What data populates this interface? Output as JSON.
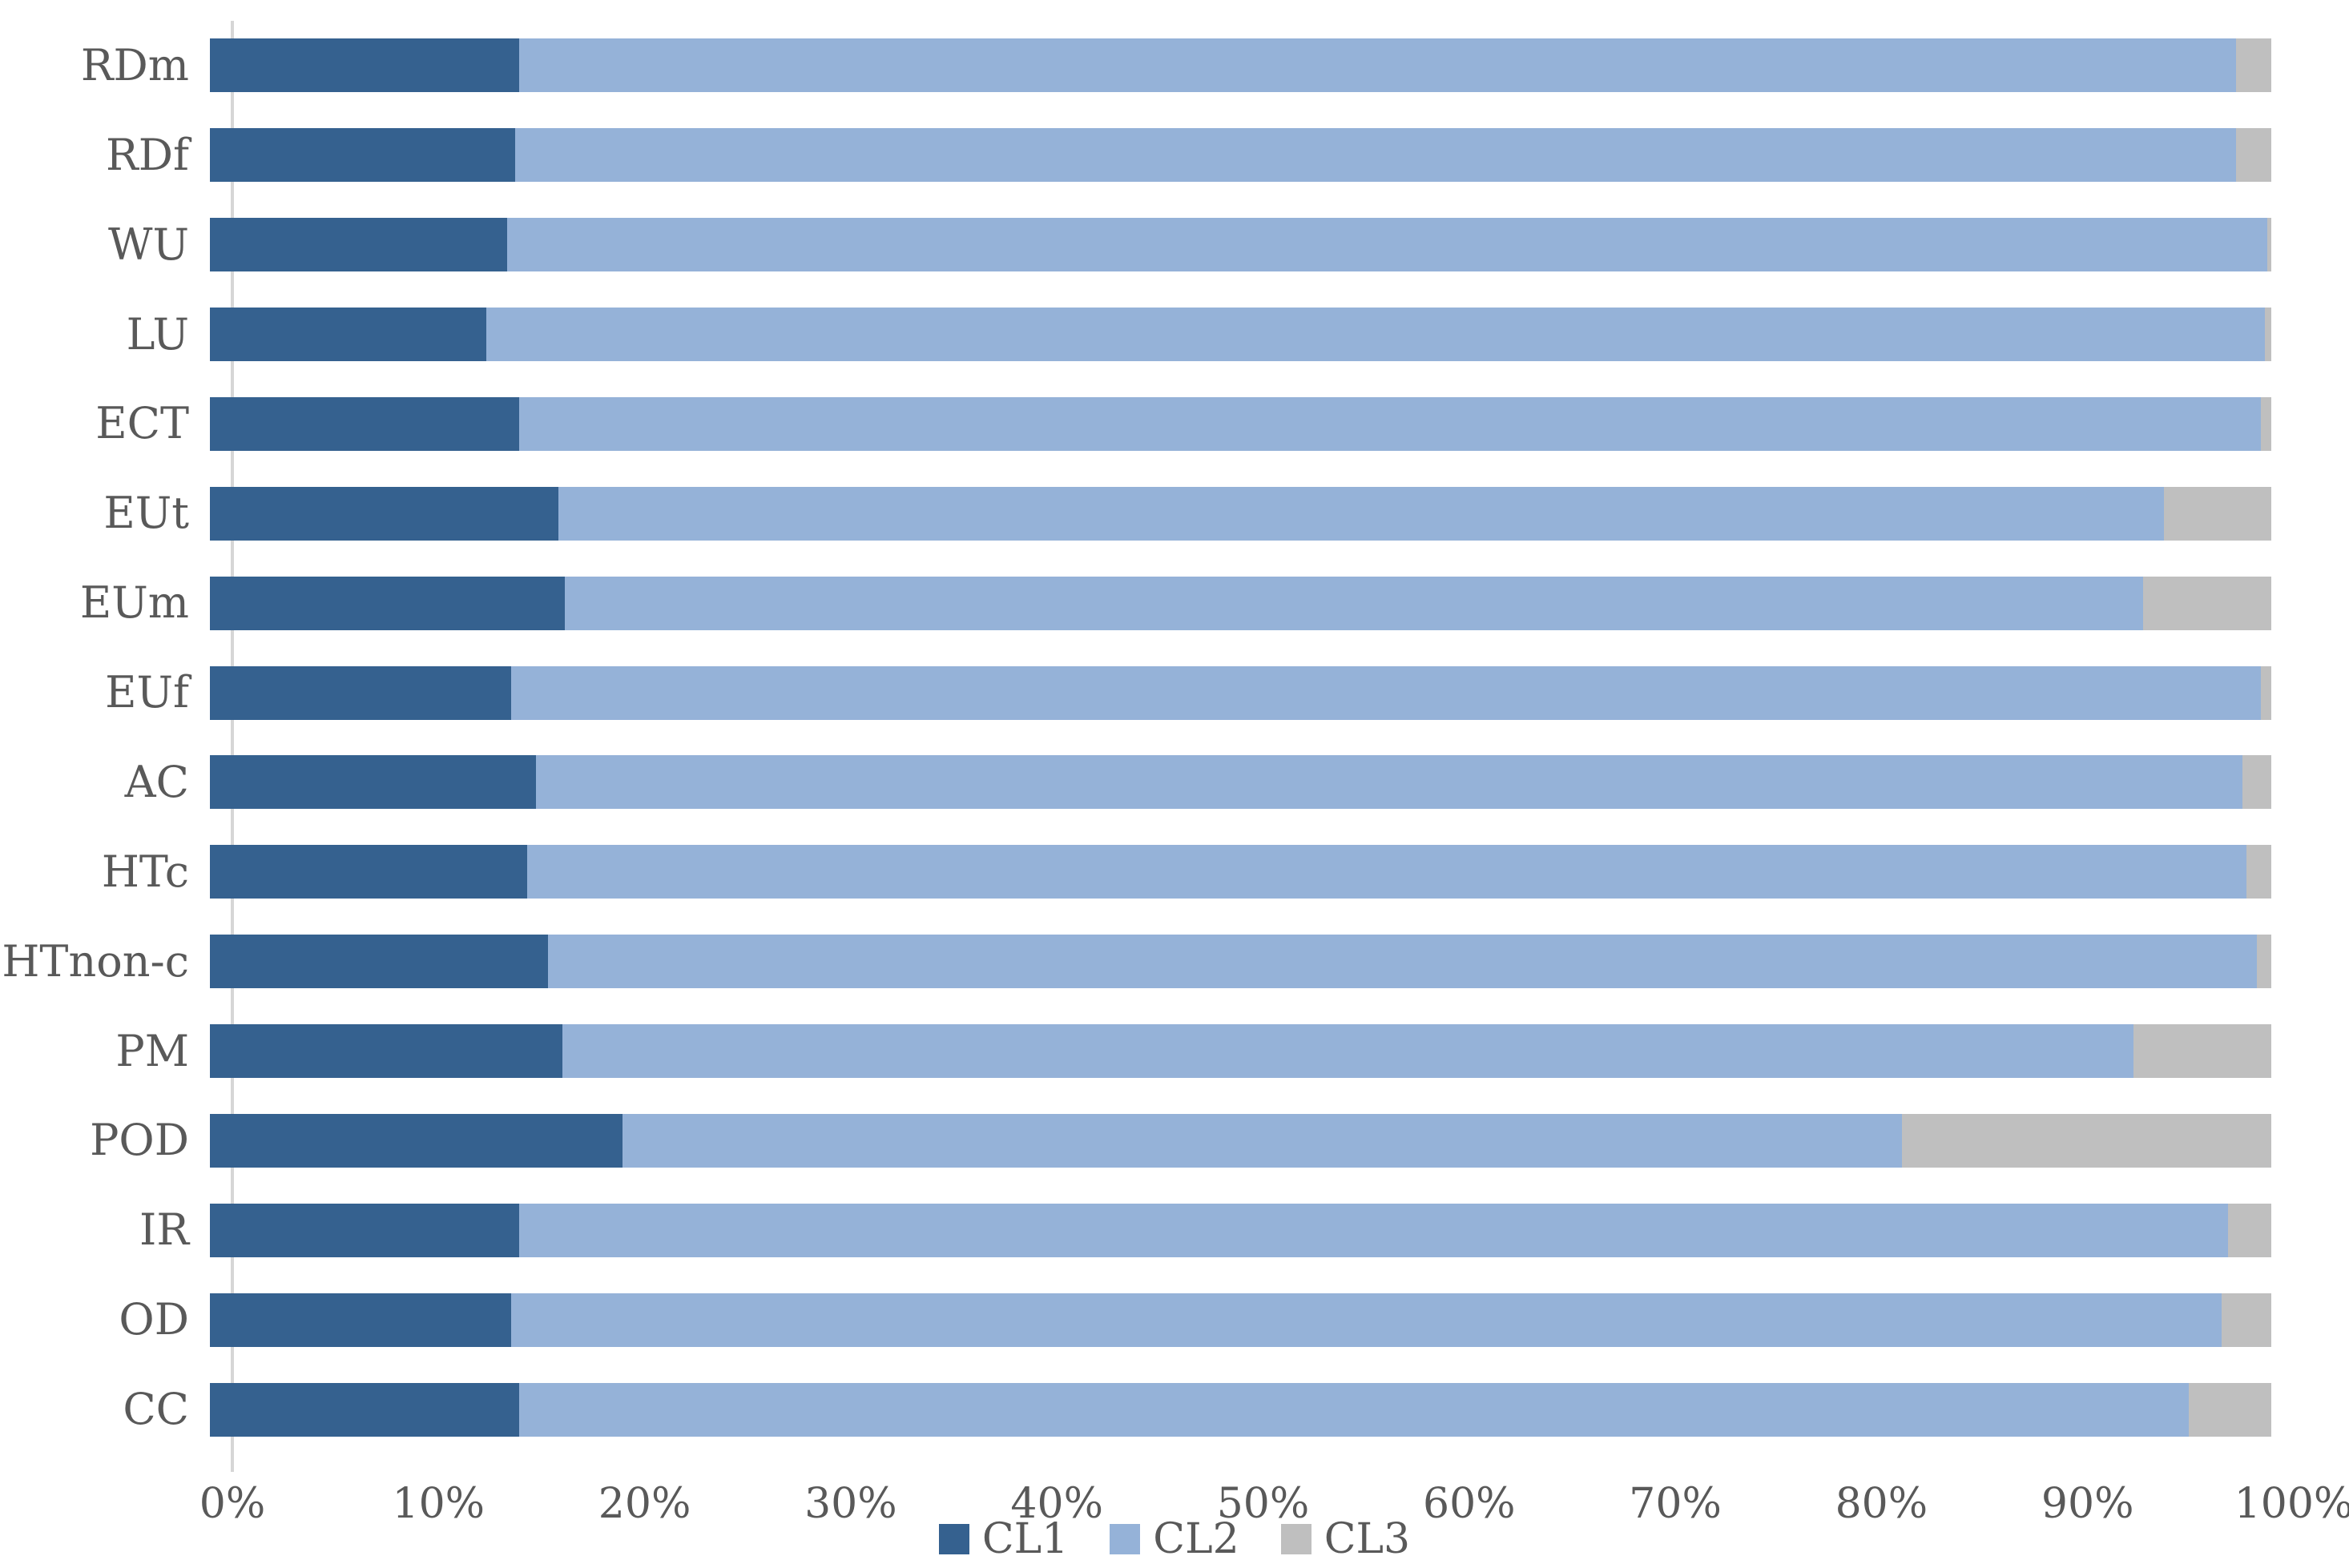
{
  "chart_data": {
    "type": "bar",
    "orientation": "horizontal",
    "stacked": true,
    "unit": "percent",
    "title": "",
    "xlabel": "",
    "ylabel": "",
    "x_axis": {
      "range": [
        0,
        100
      ],
      "tick_labels": [
        "0%",
        "10%",
        "20%",
        "30%",
        "40%",
        "50%",
        "60%",
        "70%",
        "80%",
        "90%",
        "100%"
      ],
      "grid": false
    },
    "categories": [
      "RDm",
      "RDf",
      "WU",
      "LU",
      "ECT",
      "EUt",
      "EUm",
      "EUf",
      "AC",
      "HTc",
      "HTnon-c",
      "PM",
      "POD",
      "IR",
      "OD",
      "CC"
    ],
    "series": [
      {
        "name": "CL1",
        "color": "#35618F",
        "values": [
          15.0,
          14.8,
          14.4,
          13.4,
          15.0,
          16.9,
          17.2,
          14.6,
          15.8,
          15.4,
          16.4,
          17.1,
          20.0,
          15.0,
          14.6,
          15.0
        ]
      },
      {
        "name": "CL2",
        "color": "#95B2D8",
        "values": [
          83.3,
          83.5,
          85.4,
          86.3,
          84.5,
          77.9,
          76.6,
          84.9,
          82.8,
          83.4,
          82.9,
          76.2,
          62.1,
          82.9,
          83.0,
          81.0
        ]
      },
      {
        "name": "CL3",
        "color": "#BFBFBF",
        "values": [
          1.7,
          1.7,
          0.2,
          0.3,
          0.5,
          5.2,
          6.2,
          0.5,
          1.4,
          1.2,
          0.7,
          6.7,
          17.9,
          2.1,
          2.4,
          4.0
        ]
      }
    ],
    "legend": {
      "position": "bottom",
      "entries": [
        "CL1",
        "CL2",
        "CL3"
      ]
    },
    "axis_color": "#d6d6d6",
    "label_color": "#595959"
  }
}
